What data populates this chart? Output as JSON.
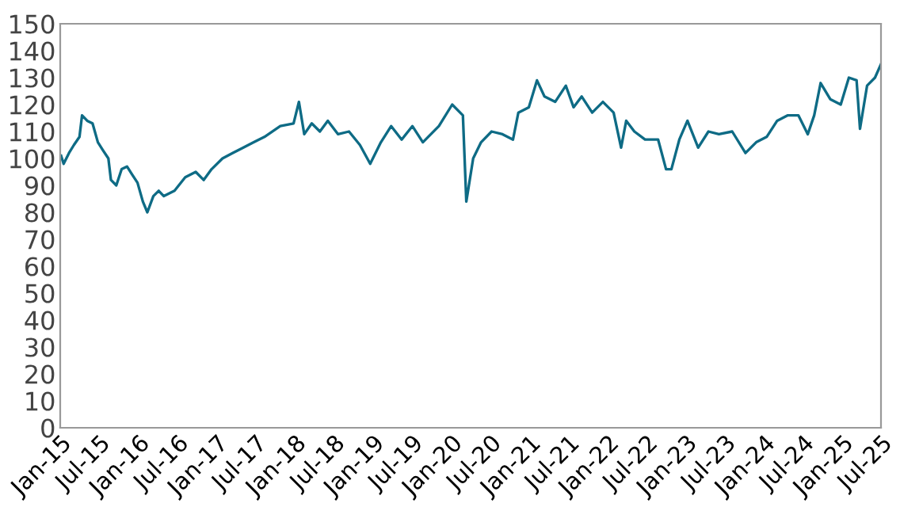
{
  "chart_data": {
    "type": "line",
    "x": [
      "2015-01-05",
      "2015-01-17",
      "2015-02-11",
      "2015-03-06",
      "2015-04-01",
      "2015-04-13",
      "2015-05-07",
      "2015-06-01",
      "2015-06-26",
      "2015-07-20",
      "2015-08-14",
      "2015-08-26",
      "2015-09-20",
      "2015-10-15",
      "2015-11-09",
      "2015-12-03",
      "2015-12-28",
      "2016-01-22",
      "2016-02-12",
      "2016-03-11",
      "2016-04-05",
      "2016-04-29",
      "2016-06-18",
      "2016-08-07",
      "2016-09-25",
      "2016-11-01",
      "2016-12-08",
      "2017-01-28",
      "2017-03-16",
      "2017-05-04",
      "2017-06-23",
      "2017-08-12",
      "2017-10-25",
      "2017-12-26",
      "2018-01-20",
      "2018-02-14",
      "2018-03-21",
      "2018-04-28",
      "2018-06-04",
      "2018-07-22",
      "2018-09-11",
      "2018-11-01",
      "2018-12-19",
      "2019-02-07",
      "2019-03-27",
      "2019-05-15",
      "2019-07-04",
      "2019-08-22",
      "2019-11-05",
      "2020-01-06",
      "2020-02-25",
      "2020-03-12",
      "2020-04-13",
      "2020-05-20",
      "2020-07-08",
      "2020-08-28",
      "2020-10-16",
      "2020-11-10",
      "2020-12-29",
      "2021-02-05",
      "2021-03-12",
      "2021-05-01",
      "2021-06-20",
      "2021-07-26",
      "2021-09-02",
      "2021-10-21",
      "2021-12-10",
      "2022-01-29",
      "2022-03-05",
      "2022-03-29",
      "2022-05-06",
      "2022-06-25",
      "2022-08-25",
      "2022-10-01",
      "2022-10-26",
      "2022-12-02",
      "2023-01-09",
      "2023-02-28",
      "2023-04-17",
      "2023-06-05",
      "2023-08-06",
      "2023-10-07",
      "2023-11-26",
      "2024-01-14",
      "2024-03-03",
      "2024-04-22",
      "2024-06-10",
      "2024-07-24",
      "2024-08-23",
      "2024-09-22",
      "2024-11-06",
      "2024-12-25",
      "2025-02-01",
      "2025-03-09",
      "2025-03-25",
      "2025-04-27",
      "2025-06-03",
      "2025-07-01"
    ],
    "series": [
      {
        "color": "#0e6b85",
        "values": [
          101,
          98,
          102,
          105,
          108,
          116,
          114,
          113,
          106,
          103,
          100,
          92,
          90,
          96,
          97,
          94,
          91,
          84,
          80,
          86,
          88,
          86,
          88,
          93,
          95,
          92,
          96,
          100,
          102,
          104,
          106,
          108,
          112,
          113,
          121,
          109,
          113,
          110,
          114,
          109,
          110,
          105,
          98,
          106,
          112,
          107,
          112,
          106,
          112,
          120,
          116,
          84,
          100,
          106,
          110,
          109,
          107,
          117,
          119,
          129,
          123,
          121,
          127,
          119,
          123,
          117,
          121,
          117,
          104,
          114,
          110,
          107,
          107,
          96,
          96,
          107,
          114,
          104,
          110,
          109,
          110,
          102,
          106,
          108,
          114,
          116,
          116,
          109,
          116,
          128,
          122,
          120,
          130,
          129,
          111,
          127,
          130,
          135
        ]
      }
    ],
    "xlim": [
      "2015-01-01",
      "2025-07-01"
    ],
    "xticks": [
      {
        "value": "2015-01-01",
        "label": "Jan-15"
      },
      {
        "value": "2015-07-01",
        "label": "Jul-15"
      },
      {
        "value": "2016-01-01",
        "label": "Jan-16"
      },
      {
        "value": "2016-07-01",
        "label": "Jul-16"
      },
      {
        "value": "2017-01-01",
        "label": "Jan-17"
      },
      {
        "value": "2017-07-01",
        "label": "Jul-17"
      },
      {
        "value": "2018-01-01",
        "label": "Jan-18"
      },
      {
        "value": "2018-07-01",
        "label": "Jul-18"
      },
      {
        "value": "2019-01-01",
        "label": "Jan-19"
      },
      {
        "value": "2019-07-01",
        "label": "Jul-19"
      },
      {
        "value": "2020-01-01",
        "label": "Jan-20"
      },
      {
        "value": "2020-07-01",
        "label": "Jul-20"
      },
      {
        "value": "2021-01-01",
        "label": "Jan-21"
      },
      {
        "value": "2021-07-01",
        "label": "Jul-21"
      },
      {
        "value": "2022-01-01",
        "label": "Jan-22"
      },
      {
        "value": "2022-07-01",
        "label": "Jul-22"
      },
      {
        "value": "2023-01-01",
        "label": "Jan-23"
      },
      {
        "value": "2023-07-01",
        "label": "Jul-23"
      },
      {
        "value": "2024-01-01",
        "label": "Jan-24"
      },
      {
        "value": "2024-07-01",
        "label": "Jul-24"
      },
      {
        "value": "2025-01-01",
        "label": "Jan-25"
      },
      {
        "value": "2025-07-01",
        "label": "Jul-25"
      }
    ],
    "ylim": [
      0,
      150
    ],
    "yticks": [
      0,
      10,
      20,
      30,
      40,
      50,
      60,
      70,
      80,
      90,
      100,
      110,
      120,
      130,
      140,
      150
    ],
    "grid": false,
    "legend": false
  }
}
